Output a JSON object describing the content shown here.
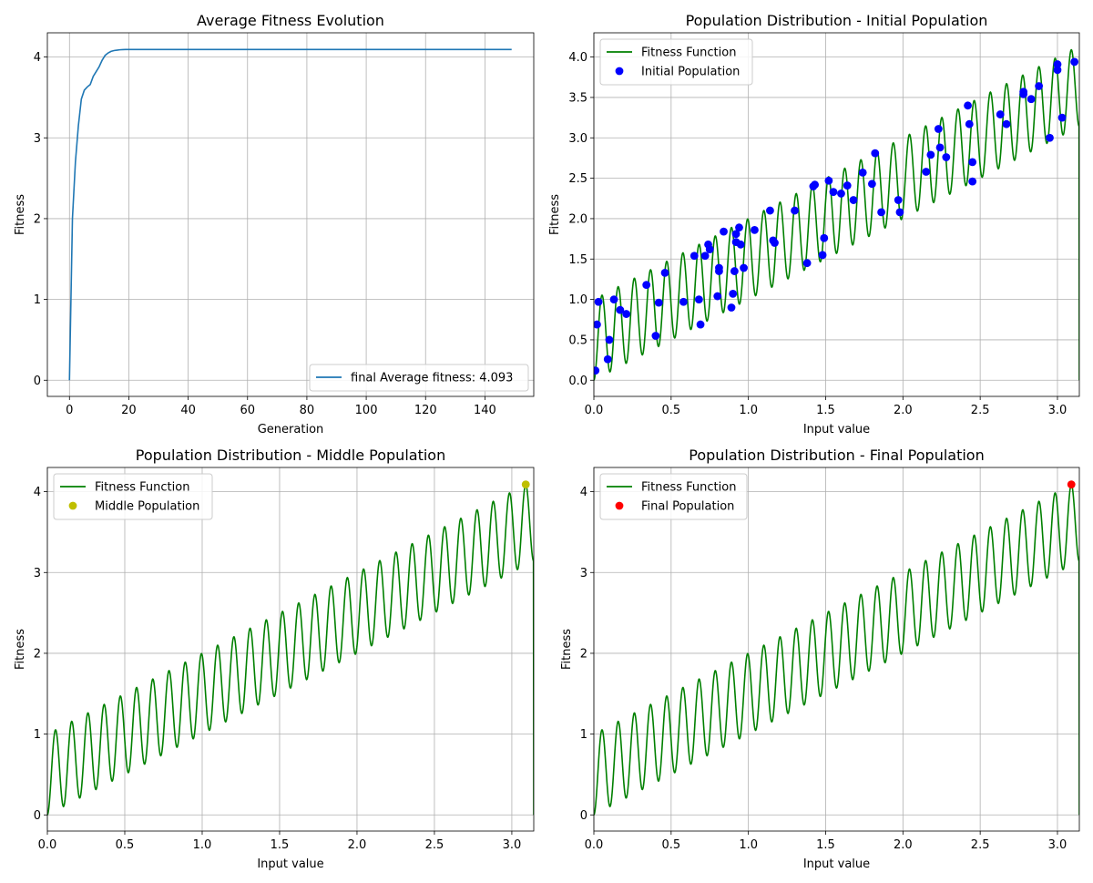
{
  "chart_data": [
    {
      "type": "line",
      "title": "Average Fitness Evolution",
      "xlabel": "Generation",
      "ylabel": "Fitness",
      "xlim": [
        -7.45,
        156.45
      ],
      "ylim": [
        -0.2,
        4.3
      ],
      "xticks": [
        0,
        20,
        40,
        60,
        80,
        100,
        120,
        140
      ],
      "yticks": [
        0,
        1,
        2,
        3,
        4
      ],
      "grid": true,
      "legend": {
        "position": "bottom-right",
        "entries": [
          "final Average fitness: 4.093"
        ]
      },
      "series": [
        {
          "name": "final Average fitness: 4.093",
          "color": "#1f77b4",
          "x": [
            0,
            1,
            2,
            3,
            4,
            5,
            6,
            7,
            8,
            9,
            10,
            11,
            12,
            13,
            14,
            15,
            16,
            17,
            18,
            19,
            20,
            149
          ],
          "y": [
            0.0,
            2.0,
            2.7,
            3.15,
            3.48,
            3.59,
            3.63,
            3.66,
            3.76,
            3.82,
            3.88,
            3.96,
            4.02,
            4.05,
            4.07,
            4.08,
            4.085,
            4.09,
            4.092,
            4.093,
            4.093,
            4.093
          ]
        }
      ]
    },
    {
      "type": "line",
      "title": "Population Distribution - Initial Population",
      "xlabel": "Input value",
      "ylabel": "Fitness",
      "xlim": [
        0,
        3.1416
      ],
      "ylim": [
        -0.2,
        4.3
      ],
      "xticks": [
        0.0,
        0.5,
        1.0,
        1.5,
        2.0,
        2.5,
        3.0
      ],
      "yticks": [
        0.0,
        0.5,
        1.0,
        1.5,
        2.0,
        2.5,
        3.0,
        3.5,
        4.0
      ],
      "grid": true,
      "legend": {
        "position": "top-left",
        "entries": [
          "Fitness Function",
          "Initial Population"
        ]
      },
      "series": [
        {
          "name": "Fitness Function",
          "color": "#008000",
          "function": "x + sin(10*pi*x/3.1416)^2 ... (sampled, 30 oscillations)"
        },
        {
          "name": "Initial Population",
          "color": "#0000ff",
          "points": [
            [
              0.01,
              0.12
            ],
            [
              0.02,
              0.69
            ],
            [
              0.03,
              0.97
            ],
            [
              0.09,
              0.26
            ],
            [
              0.1,
              0.5
            ],
            [
              0.13,
              1.0
            ],
            [
              0.17,
              0.87
            ],
            [
              0.21,
              0.82
            ],
            [
              0.34,
              1.18
            ],
            [
              0.4,
              0.55
            ],
            [
              0.42,
              0.96
            ],
            [
              0.46,
              1.33
            ],
            [
              0.58,
              0.97
            ],
            [
              0.65,
              1.54
            ],
            [
              0.68,
              1.0
            ],
            [
              0.69,
              0.69
            ],
            [
              0.72,
              1.54
            ],
            [
              0.74,
              1.68
            ],
            [
              0.75,
              1.62
            ],
            [
              0.8,
              1.04
            ],
            [
              0.81,
              1.35
            ],
            [
              0.81,
              1.39
            ],
            [
              0.84,
              1.84
            ],
            [
              0.89,
              0.9
            ],
            [
              0.9,
              1.07
            ],
            [
              0.91,
              1.35
            ],
            [
              0.92,
              1.71
            ],
            [
              0.92,
              1.81
            ],
            [
              0.94,
              1.89
            ],
            [
              0.95,
              1.68
            ],
            [
              0.97,
              1.39
            ],
            [
              1.04,
              1.86
            ],
            [
              1.14,
              2.1
            ],
            [
              1.16,
              1.73
            ],
            [
              1.17,
              1.7
            ],
            [
              1.3,
              2.1
            ],
            [
              1.38,
              1.45
            ],
            [
              1.42,
              2.4
            ],
            [
              1.43,
              2.42
            ],
            [
              1.48,
              1.55
            ],
            [
              1.49,
              1.76
            ],
            [
              1.52,
              2.47
            ],
            [
              1.55,
              2.33
            ],
            [
              1.6,
              2.31
            ],
            [
              1.64,
              2.41
            ],
            [
              1.68,
              2.23
            ],
            [
              1.74,
              2.57
            ],
            [
              1.8,
              2.43
            ],
            [
              1.82,
              2.81
            ],
            [
              1.86,
              2.08
            ],
            [
              1.97,
              2.23
            ],
            [
              1.98,
              2.08
            ],
            [
              2.15,
              2.58
            ],
            [
              2.18,
              2.79
            ],
            [
              2.23,
              3.11
            ],
            [
              2.24,
              2.88
            ],
            [
              2.28,
              2.76
            ],
            [
              2.42,
              3.4
            ],
            [
              2.43,
              3.17
            ],
            [
              2.45,
              2.7
            ],
            [
              2.45,
              2.46
            ],
            [
              2.63,
              3.29
            ],
            [
              2.67,
              3.17
            ],
            [
              2.78,
              3.57
            ],
            [
              2.78,
              3.54
            ],
            [
              2.83,
              3.48
            ],
            [
              2.88,
              3.64
            ],
            [
              2.95,
              3.0
            ],
            [
              3.0,
              3.91
            ],
            [
              3.0,
              3.84
            ],
            [
              3.03,
              3.25
            ],
            [
              3.11,
              3.94
            ]
          ]
        }
      ]
    },
    {
      "type": "line",
      "title": "Population Distribution - Middle Population",
      "xlabel": "Input value",
      "ylabel": "Fitness",
      "xlim": [
        0,
        3.1416
      ],
      "ylim": [
        -0.2,
        4.3
      ],
      "xticks": [
        0.0,
        0.5,
        1.0,
        1.5,
        2.0,
        2.5,
        3.0
      ],
      "yticks": [
        0,
        1,
        2,
        3,
        4
      ],
      "grid": true,
      "legend": {
        "position": "top-left",
        "entries": [
          "Fitness Function",
          "Middle Population"
        ]
      },
      "series": [
        {
          "name": "Fitness Function",
          "color": "#008000",
          "function": "sampled, 30 oscillations"
        },
        {
          "name": "Middle Population",
          "color": "#bfbf00",
          "points": [
            [
              3.09,
              4.09
            ]
          ]
        }
      ]
    },
    {
      "type": "line",
      "title": "Population Distribution - Final Population",
      "xlabel": "Input value",
      "ylabel": "Fitness",
      "xlim": [
        0,
        3.1416
      ],
      "ylim": [
        -0.2,
        4.3
      ],
      "xticks": [
        0.0,
        0.5,
        1.0,
        1.5,
        2.0,
        2.5,
        3.0
      ],
      "yticks": [
        0,
        1,
        2,
        3,
        4
      ],
      "grid": true,
      "legend": {
        "position": "top-left",
        "entries": [
          "Fitness Function",
          "Final Population"
        ]
      },
      "series": [
        {
          "name": "Fitness Function",
          "color": "#008000",
          "function": "sampled, 30 oscillations"
        },
        {
          "name": "Final Population",
          "color": "#ff0000",
          "points": [
            [
              3.09,
              4.09
            ]
          ]
        }
      ]
    }
  ]
}
